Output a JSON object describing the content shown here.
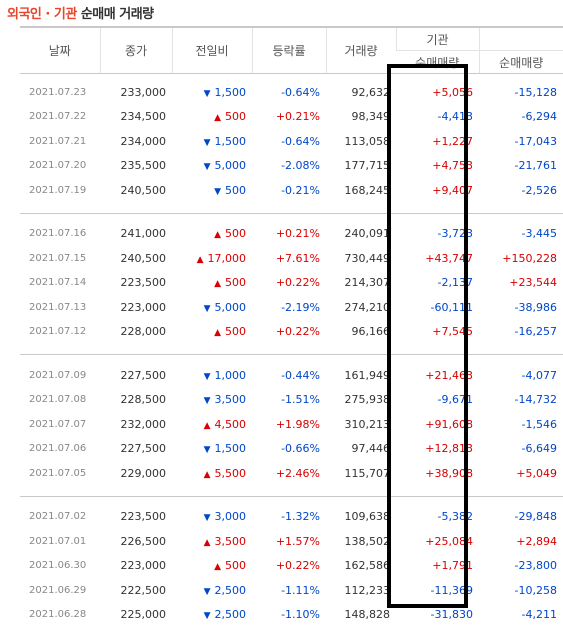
{
  "title": {
    "part1": "외국인 · 기관",
    "part2": " 순매매 거래량"
  },
  "headers": {
    "date": "날짜",
    "close": "종가",
    "change": "전일비",
    "rate": "등락률",
    "volume": "거래량",
    "institution": "기관",
    "inst_net": "순매매량",
    "foreign_net": "순매매량"
  },
  "colors": {
    "up": "#d80000",
    "down": "#0046c8",
    "title_accent": "#e8452c"
  },
  "groups": [
    [
      {
        "date": "2021.07.23",
        "close": "233,000",
        "dir": "down",
        "change": "1,500",
        "rate": "-0.64%",
        "volume": "92,632",
        "inst": "+5,056",
        "foreign": "-15,128"
      },
      {
        "date": "2021.07.22",
        "close": "234,500",
        "dir": "up",
        "change": "500",
        "rate": "+0.21%",
        "volume": "98,349",
        "inst": "-4,413",
        "foreign": "-6,294"
      },
      {
        "date": "2021.07.21",
        "close": "234,000",
        "dir": "down",
        "change": "1,500",
        "rate": "-0.64%",
        "volume": "113,058",
        "inst": "+1,227",
        "foreign": "-17,043"
      },
      {
        "date": "2021.07.20",
        "close": "235,500",
        "dir": "down",
        "change": "5,000",
        "rate": "-2.08%",
        "volume": "177,715",
        "inst": "+4,753",
        "foreign": "-21,761"
      },
      {
        "date": "2021.07.19",
        "close": "240,500",
        "dir": "down",
        "change": "500",
        "rate": "-0.21%",
        "volume": "168,245",
        "inst": "+9,407",
        "foreign": "-2,526"
      }
    ],
    [
      {
        "date": "2021.07.16",
        "close": "241,000",
        "dir": "up",
        "change": "500",
        "rate": "+0.21%",
        "volume": "240,091",
        "inst": "-3,723",
        "foreign": "-3,445"
      },
      {
        "date": "2021.07.15",
        "close": "240,500",
        "dir": "up",
        "change": "17,000",
        "rate": "+7.61%",
        "volume": "730,449",
        "inst": "+43,747",
        "foreign": "+150,228"
      },
      {
        "date": "2021.07.14",
        "close": "223,500",
        "dir": "up",
        "change": "500",
        "rate": "+0.22%",
        "volume": "214,307",
        "inst": "-2,137",
        "foreign": "+23,544"
      },
      {
        "date": "2021.07.13",
        "close": "223,000",
        "dir": "down",
        "change": "5,000",
        "rate": "-2.19%",
        "volume": "274,210",
        "inst": "-60,111",
        "foreign": "-38,986"
      },
      {
        "date": "2021.07.12",
        "close": "228,000",
        "dir": "up",
        "change": "500",
        "rate": "+0.22%",
        "volume": "96,166",
        "inst": "+7,545",
        "foreign": "-16,257"
      }
    ],
    [
      {
        "date": "2021.07.09",
        "close": "227,500",
        "dir": "down",
        "change": "1,000",
        "rate": "-0.44%",
        "volume": "161,949",
        "inst": "+21,463",
        "foreign": "-4,077"
      },
      {
        "date": "2021.07.08",
        "close": "228,500",
        "dir": "down",
        "change": "3,500",
        "rate": "-1.51%",
        "volume": "275,938",
        "inst": "-9,671",
        "foreign": "-14,732"
      },
      {
        "date": "2021.07.07",
        "close": "232,000",
        "dir": "up",
        "change": "4,500",
        "rate": "+1.98%",
        "volume": "310,213",
        "inst": "+91,608",
        "foreign": "-1,546"
      },
      {
        "date": "2021.07.06",
        "close": "227,500",
        "dir": "down",
        "change": "1,500",
        "rate": "-0.66%",
        "volume": "97,446",
        "inst": "+12,813",
        "foreign": "-6,649"
      },
      {
        "date": "2021.07.05",
        "close": "229,000",
        "dir": "up",
        "change": "5,500",
        "rate": "+2.46%",
        "volume": "115,707",
        "inst": "+38,908",
        "foreign": "+5,049"
      }
    ],
    [
      {
        "date": "2021.07.02",
        "close": "223,500",
        "dir": "down",
        "change": "3,000",
        "rate": "-1.32%",
        "volume": "109,638",
        "inst": "-5,382",
        "foreign": "-29,848"
      },
      {
        "date": "2021.07.01",
        "close": "226,500",
        "dir": "up",
        "change": "3,500",
        "rate": "+1.57%",
        "volume": "138,502",
        "inst": "+25,084",
        "foreign": "+2,894"
      },
      {
        "date": "2021.06.30",
        "close": "223,000",
        "dir": "up",
        "change": "500",
        "rate": "+0.22%",
        "volume": "162,586",
        "inst": "+1,791",
        "foreign": "-23,800"
      },
      {
        "date": "2021.06.29",
        "close": "222,500",
        "dir": "down",
        "change": "2,500",
        "rate": "-1.11%",
        "volume": "112,233",
        "inst": "-11,369",
        "foreign": "-10,258"
      },
      {
        "date": "2021.06.28",
        "close": "225,000",
        "dir": "down",
        "change": "2,500",
        "rate": "-1.10%",
        "volume": "148,828",
        "inst": "-31,830",
        "foreign": "-4,211"
      }
    ]
  ]
}
